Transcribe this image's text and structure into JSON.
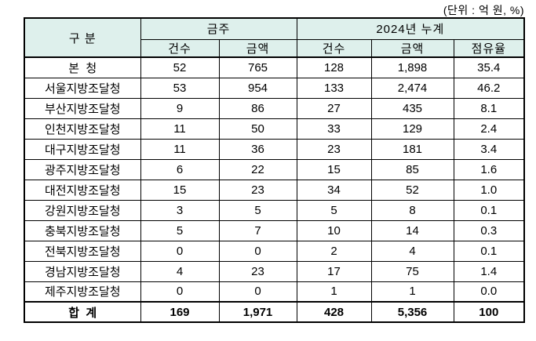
{
  "unit_label": "(단위 : 억 원, %)",
  "colors": {
    "header_bg": "#def0ec",
    "border": "#000000",
    "text": "#000000"
  },
  "table": {
    "headers": {
      "category": "구 분",
      "this_week": "금주",
      "cumulative_2024": "2024년 누계",
      "sub": [
        "건수",
        "금액",
        "건수",
        "금액",
        "점유율"
      ]
    },
    "rows": [
      {
        "label": "본  청",
        "values": [
          "52",
          "765",
          "128",
          "1,898",
          "35.4"
        ]
      },
      {
        "label": "서울지방조달청",
        "values": [
          "53",
          "954",
          "133",
          "2,474",
          "46.2"
        ]
      },
      {
        "label": "부산지방조달청",
        "values": [
          "9",
          "86",
          "27",
          "435",
          "8.1"
        ]
      },
      {
        "label": "인천지방조달청",
        "values": [
          "11",
          "50",
          "33",
          "129",
          "2.4"
        ]
      },
      {
        "label": "대구지방조달청",
        "values": [
          "11",
          "36",
          "23",
          "181",
          "3.4"
        ]
      },
      {
        "label": "광주지방조달청",
        "values": [
          "6",
          "22",
          "15",
          "85",
          "1.6"
        ]
      },
      {
        "label": "대전지방조달청",
        "values": [
          "15",
          "23",
          "34",
          "52",
          "1.0"
        ]
      },
      {
        "label": "강원지방조달청",
        "values": [
          "3",
          "5",
          "5",
          "8",
          "0.1"
        ]
      },
      {
        "label": "충북지방조달청",
        "values": [
          "5",
          "7",
          "10",
          "14",
          "0.3"
        ]
      },
      {
        "label": "전북지방조달청",
        "values": [
          "0",
          "0",
          "2",
          "4",
          "0.1"
        ]
      },
      {
        "label": "경남지방조달청",
        "values": [
          "4",
          "23",
          "17",
          "75",
          "1.4"
        ]
      },
      {
        "label": "제주지방조달청",
        "values": [
          "0",
          "0",
          "1",
          "1",
          "0.0"
        ]
      },
      {
        "label": "합  계",
        "values": [
          "169",
          "1,971",
          "428",
          "5,356",
          "100"
        ],
        "is_total": true
      }
    ]
  }
}
